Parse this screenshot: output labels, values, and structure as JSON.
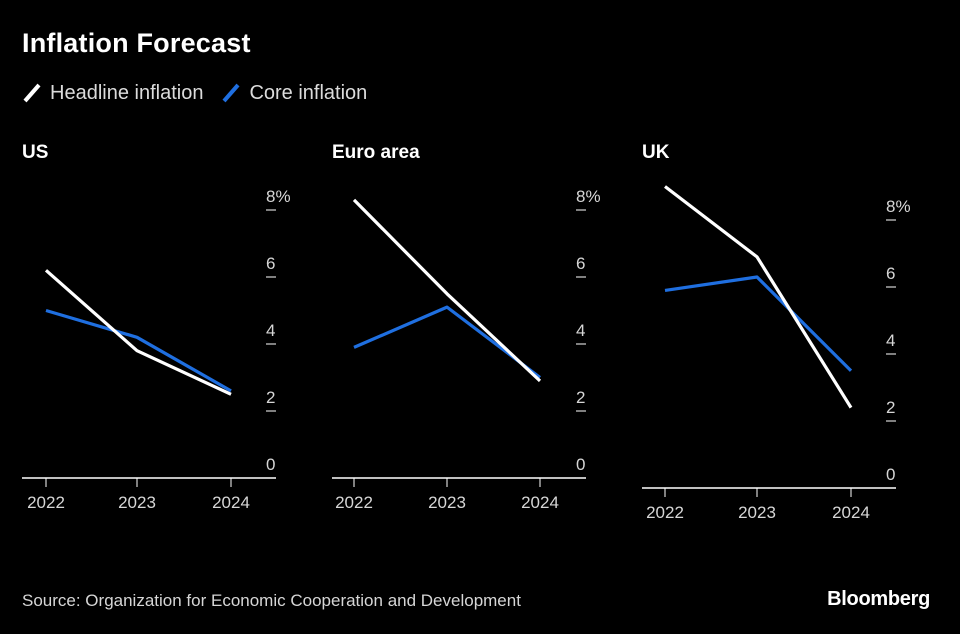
{
  "header": {
    "title": "Inflation Forecast"
  },
  "legend": [
    {
      "label": "Headline inflation",
      "color": "#ffffff"
    },
    {
      "label": "Core inflation",
      "color": "#1f6fe0"
    }
  ],
  "chart_data": [
    {
      "type": "line",
      "title": "US",
      "categories": [
        "2022",
        "2023",
        "2024"
      ],
      "series": [
        {
          "name": "Headline inflation",
          "color": "#ffffff",
          "values": [
            6.2,
            3.8,
            2.5
          ]
        },
        {
          "name": "Core inflation",
          "color": "#1f6fe0",
          "values": [
            5.0,
            4.2,
            2.6
          ]
        }
      ],
      "ylim": [
        0,
        8
      ],
      "yticks": [
        0,
        2,
        4,
        6,
        8
      ],
      "ytick_labels": [
        "0",
        "2",
        "4",
        "6",
        "8%"
      ]
    },
    {
      "type": "line",
      "title": "Euro area",
      "categories": [
        "2022",
        "2023",
        "2024"
      ],
      "series": [
        {
          "name": "Headline inflation",
          "color": "#ffffff",
          "values": [
            8.3,
            5.5,
            2.9
          ]
        },
        {
          "name": "Core inflation",
          "color": "#1f6fe0",
          "values": [
            3.9,
            5.1,
            3.0
          ]
        }
      ],
      "ylim": [
        0,
        8
      ],
      "yticks": [
        0,
        2,
        4,
        6,
        8
      ],
      "ytick_labels": [
        "0",
        "2",
        "4",
        "6",
        "8%"
      ]
    },
    {
      "type": "line",
      "title": "UK",
      "categories": [
        "2022",
        "2023",
        "2024"
      ],
      "series": [
        {
          "name": "Headline inflation",
          "color": "#ffffff",
          "values": [
            9.0,
            6.9,
            2.4
          ]
        },
        {
          "name": "Core inflation",
          "color": "#1f6fe0",
          "values": [
            5.9,
            6.3,
            3.5
          ]
        }
      ],
      "ylim": [
        0,
        8
      ],
      "yticks": [
        0,
        2,
        4,
        6,
        8
      ],
      "ytick_labels": [
        "0",
        "2",
        "4",
        "6",
        "8%"
      ]
    }
  ],
  "footer": {
    "source": "Source: Organization for Economic Cooperation and Development",
    "brand": "Bloomberg"
  }
}
